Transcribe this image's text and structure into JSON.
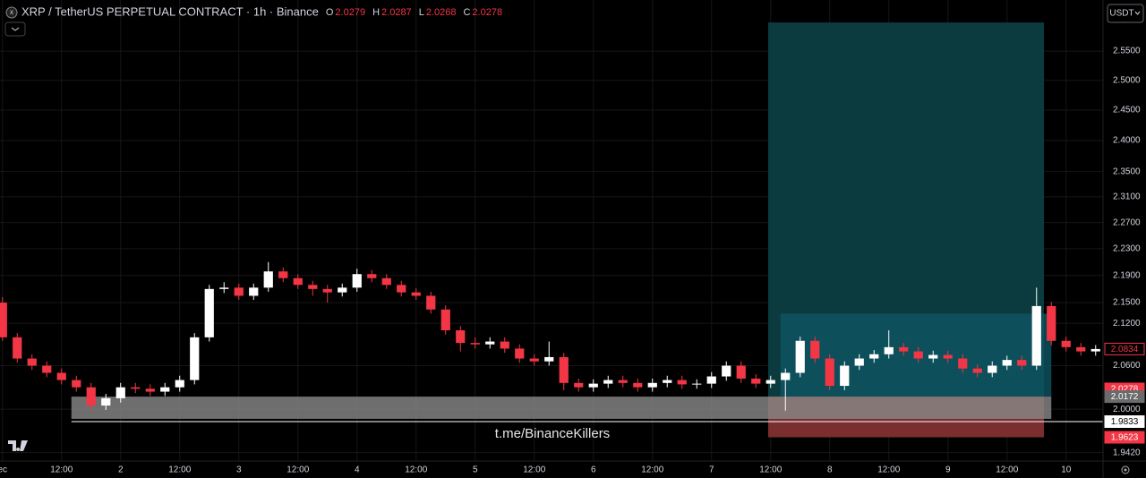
{
  "chart_data": {
    "type": "candlestick",
    "title": "XRP / TetherUS PERPETUAL CONTRACT · 1h · Binance",
    "ohlc": [
      {
        "label": "O",
        "value": 2.0279
      },
      {
        "label": "H",
        "value": 2.0287
      },
      {
        "label": "L",
        "value": 2.0268
      },
      {
        "label": "C",
        "value": 2.0278
      }
    ],
    "currency": "USDT",
    "watermark": "t.me/BinanceKillers",
    "up_color": "#ffffff",
    "down_color": "#f23645",
    "grid": true,
    "log_scale": true,
    "xlim": [
      -24.5,
      199.5
    ],
    "xticks": [
      {
        "value": -24,
        "label": "ec"
      },
      {
        "value": -12,
        "label": "12:00"
      },
      {
        "value": 0,
        "label": "2"
      },
      {
        "value": 12,
        "label": "12:00"
      },
      {
        "value": 24,
        "label": "3"
      },
      {
        "value": 36,
        "label": "12:00"
      },
      {
        "value": 48,
        "label": "4"
      },
      {
        "value": 60,
        "label": "12:00"
      },
      {
        "value": 72,
        "label": "5"
      },
      {
        "value": 84,
        "label": "12:00"
      },
      {
        "value": 96,
        "label": "6"
      },
      {
        "value": 108,
        "label": "12:00"
      },
      {
        "value": 120,
        "label": "7"
      },
      {
        "value": 132,
        "label": "12:00"
      },
      {
        "value": 144,
        "label": "8"
      },
      {
        "value": 156,
        "label": "12:00"
      },
      {
        "value": 168,
        "label": "9"
      },
      {
        "value": 180,
        "label": "12:00"
      },
      {
        "value": 192,
        "label": "10"
      }
    ],
    "ylim": [
      1.931,
      2.624
    ],
    "yticks": [
      {
        "value": 1.942,
        "label": "1.9420"
      },
      {
        "value": 2.0,
        "label": "2.0000"
      },
      {
        "value": 2.06,
        "label": "2.0600"
      },
      {
        "value": 2.12,
        "label": "2.1200"
      },
      {
        "value": 2.15,
        "label": "2.1500"
      },
      {
        "value": 2.19,
        "label": "2.1900"
      },
      {
        "value": 2.23,
        "label": "2.2300"
      },
      {
        "value": 2.27,
        "label": "2.2700"
      },
      {
        "value": 2.31,
        "label": "2.3100"
      },
      {
        "value": 2.35,
        "label": "2.3500"
      },
      {
        "value": 2.4,
        "label": "2.4000"
      },
      {
        "value": 2.45,
        "label": "2.4500"
      },
      {
        "value": 2.5,
        "label": "2.5000"
      },
      {
        "value": 2.55,
        "label": "2.5500"
      }
    ],
    "x": [
      -24,
      -21,
      -18,
      -15,
      -12,
      -9,
      -6,
      -3,
      0,
      3,
      6,
      9,
      12,
      15,
      18,
      21,
      24,
      27,
      30,
      33,
      36,
      39,
      42,
      45,
      48,
      51,
      54,
      57,
      60,
      63,
      66,
      69,
      72,
      75,
      78,
      81,
      84,
      87,
      90,
      93,
      96,
      99,
      102,
      105,
      108,
      111,
      114,
      117,
      120,
      123,
      126,
      129,
      132,
      135,
      138,
      141,
      144,
      147,
      150,
      153,
      156,
      159,
      162,
      165,
      168,
      171,
      174,
      177,
      180,
      183,
      186,
      189,
      192,
      195,
      198
    ],
    "open": [
      2.15,
      2.1,
      2.07,
      2.06,
      2.05,
      2.04,
      2.03,
      2.005,
      2.015,
      2.03,
      2.028,
      2.024,
      2.03,
      2.04,
      2.1,
      2.17,
      2.172,
      2.16,
      2.172,
      2.196,
      2.186,
      2.176,
      2.17,
      2.165,
      2.172,
      2.192,
      2.186,
      2.176,
      2.165,
      2.16,
      2.14,
      2.11,
      2.092,
      2.09,
      2.094,
      2.084,
      2.07,
      2.066,
      2.072,
      2.036,
      2.03,
      2.035,
      2.04,
      2.036,
      2.03,
      2.036,
      2.04,
      2.034,
      2.035,
      2.045,
      2.06,
      2.042,
      2.035,
      2.04,
      2.05,
      2.095,
      2.07,
      2.032,
      2.06,
      2.07,
      2.076,
      2.086,
      2.08,
      2.07,
      2.075,
      2.07,
      2.056,
      2.05,
      2.06,
      2.068,
      2.06,
      2.145,
      2.095,
      2.086,
      2.08
    ],
    "high": [
      2.158,
      2.106,
      2.076,
      2.066,
      2.056,
      2.046,
      2.036,
      2.021,
      2.036,
      2.036,
      2.034,
      2.036,
      2.046,
      2.106,
      2.176,
      2.18,
      2.178,
      2.178,
      2.21,
      2.202,
      2.192,
      2.182,
      2.176,
      2.178,
      2.2,
      2.198,
      2.192,
      2.182,
      2.171,
      2.166,
      2.146,
      2.116,
      2.1,
      2.1,
      2.1,
      2.09,
      2.076,
      2.094,
      2.078,
      2.042,
      2.041,
      2.046,
      2.046,
      2.042,
      2.042,
      2.046,
      2.046,
      2.041,
      2.051,
      2.066,
      2.066,
      2.048,
      2.046,
      2.056,
      2.101,
      2.101,
      2.076,
      2.066,
      2.076,
      2.082,
      2.11,
      2.092,
      2.086,
      2.081,
      2.081,
      2.076,
      2.062,
      2.066,
      2.074,
      2.074,
      2.172,
      2.151,
      2.101,
      2.092,
      2.089
    ],
    "low": [
      2.095,
      2.064,
      2.054,
      2.044,
      2.034,
      2.024,
      1.998,
      1.999,
      2.009,
      2.022,
      2.018,
      2.018,
      2.024,
      2.034,
      2.094,
      2.164,
      2.154,
      2.154,
      2.166,
      2.18,
      2.17,
      2.16,
      2.15,
      2.159,
      2.166,
      2.18,
      2.17,
      2.159,
      2.154,
      2.134,
      2.104,
      2.08,
      2.084,
      2.084,
      2.078,
      2.064,
      2.06,
      2.06,
      2.026,
      2.024,
      2.024,
      2.029,
      2.03,
      2.024,
      2.024,
      2.03,
      2.028,
      2.028,
      2.029,
      2.039,
      2.036,
      2.029,
      2.029,
      1.998,
      2.044,
      2.064,
      2.026,
      2.026,
      2.054,
      2.064,
      2.07,
      2.074,
      2.064,
      2.064,
      2.064,
      2.05,
      2.044,
      2.044,
      2.054,
      2.054,
      2.054,
      2.089,
      2.08,
      2.074,
      2.074
    ],
    "close": [
      2.1,
      2.07,
      2.06,
      2.05,
      2.04,
      2.03,
      2.005,
      2.015,
      2.03,
      2.028,
      2.024,
      2.03,
      2.04,
      2.1,
      2.17,
      2.172,
      2.16,
      2.172,
      2.196,
      2.186,
      2.176,
      2.17,
      2.165,
      2.172,
      2.192,
      2.186,
      2.176,
      2.165,
      2.16,
      2.14,
      2.11,
      2.092,
      2.09,
      2.094,
      2.084,
      2.07,
      2.066,
      2.072,
      2.036,
      2.03,
      2.035,
      2.04,
      2.036,
      2.03,
      2.036,
      2.04,
      2.034,
      2.035,
      2.045,
      2.06,
      2.042,
      2.035,
      2.04,
      2.05,
      2.095,
      2.07,
      2.032,
      2.06,
      2.07,
      2.076,
      2.086,
      2.08,
      2.07,
      2.075,
      2.07,
      2.056,
      2.05,
      2.06,
      2.068,
      2.06,
      2.145,
      2.095,
      2.086,
      2.08,
      2.0834
    ],
    "position": {
      "start": 131.5,
      "end": 187.5,
      "entry": 2.0172,
      "stop": 1.9623,
      "target": 2.6
    },
    "zones": [
      {
        "start": 134,
        "end": 189,
        "low": 2.0172,
        "high": 2.134,
        "color": "#0e5563"
      },
      {
        "start": -10,
        "end": 189,
        "low": 1.987,
        "high": 2.0172,
        "color": "#8a8a8a"
      }
    ],
    "lines": [
      {
        "start": -10,
        "end": 199.5,
        "value": 1.9833,
        "color": "#ffffff"
      }
    ],
    "price_labels": [
      {
        "value": 2.0834,
        "bg": "#000000",
        "fg": "#f23645",
        "border": "#f23645"
      },
      {
        "value": 2.0278,
        "bg": "#f23645",
        "fg": "#ffffff",
        "border": "#f23645"
      },
      {
        "value": 2.0172,
        "bg": "#6b6b6b",
        "fg": "#ffffff",
        "border": "#6b6b6b"
      },
      {
        "value": 1.9833,
        "bg": "#ffffff",
        "fg": "#000000",
        "border": "#ffffff"
      },
      {
        "value": 1.9623,
        "bg": "#f23645",
        "fg": "#ffffff",
        "border": "#f23645"
      }
    ]
  }
}
